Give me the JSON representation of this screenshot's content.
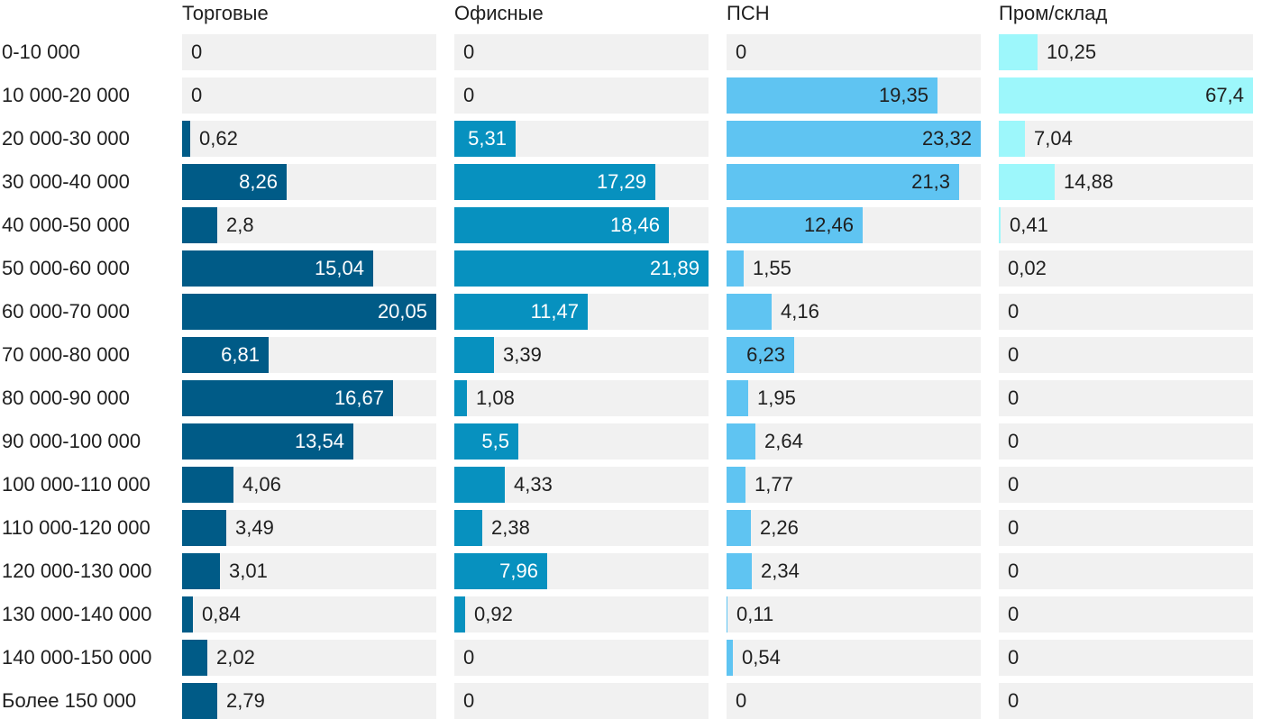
{
  "chart_data": {
    "type": "bar",
    "orientation": "horizontal",
    "layout": "small-multiples",
    "categories": [
      "0-10 000",
      "10 000-20 000",
      "20 000-30 000",
      "30 000-40 000",
      "40 000-50 000",
      "50 000-60 000",
      "60 000-70 000",
      "70 000-80 000",
      "80 000-90 000",
      "90 000-100 000",
      "100 000-110 000",
      "110 000-120 000",
      "120 000-130 000",
      "130 000-140 000",
      "140 000-150 000",
      "Более 150 000"
    ],
    "series": [
      {
        "name": "Торговые",
        "color": "#005b87",
        "labels": [
          "0",
          "0",
          "0,62",
          "8,26",
          "2,8",
          "15,04",
          "20,05",
          "6,81",
          "16,67",
          "13,54",
          "4,06",
          "3,49",
          "3,01",
          "0,84",
          "2,02",
          "2,79"
        ],
        "values": [
          0,
          0,
          0.62,
          8.26,
          2.8,
          15.04,
          20.05,
          6.81,
          16.67,
          13.54,
          4.06,
          3.49,
          3.01,
          0.84,
          2.02,
          2.79
        ]
      },
      {
        "name": "Офисные",
        "color": "#0791bf",
        "labels": [
          "0",
          "0",
          "5,31",
          "17,29",
          "18,46",
          "21,89",
          "11,47",
          "3,39",
          "1,08",
          "5,5",
          "4,33",
          "2,38",
          "7,96",
          "0,92",
          "0",
          "0"
        ],
        "values": [
          0,
          0,
          5.31,
          17.29,
          18.46,
          21.89,
          11.47,
          3.39,
          1.08,
          5.5,
          4.33,
          2.38,
          7.96,
          0.92,
          0,
          0
        ]
      },
      {
        "name": "ПСН",
        "color": "#5fc4f2",
        "labels": [
          "0",
          "19,35",
          "23,32",
          "21,3",
          "12,46",
          "1,55",
          "4,16",
          "6,23",
          "1,95",
          "2,64",
          "1,77",
          "2,26",
          "2,34",
          "0,11",
          "0,54",
          "0"
        ],
        "values": [
          0,
          19.35,
          23.32,
          21.3,
          12.46,
          1.55,
          4.16,
          6.23,
          1.95,
          2.64,
          1.77,
          2.26,
          2.34,
          0.11,
          0.54,
          0
        ]
      },
      {
        "name": "Пром/склад",
        "color": "#9df7fb",
        "labels": [
          "10,25",
          "67,4",
          "7,04",
          "14,88",
          "0,41",
          "0,02",
          "0",
          "0",
          "0",
          "0",
          "0",
          "0",
          "0",
          "0",
          "0",
          "0"
        ],
        "values": [
          10.25,
          67.4,
          7.04,
          14.88,
          0.41,
          0.02,
          0,
          0,
          0,
          0,
          0,
          0,
          0,
          0,
          0,
          0
        ]
      }
    ],
    "inside_label_colors": [
      "#ffffff",
      "#ffffff",
      "#1f1f1f",
      "#1f1f1f"
    ],
    "outside_label_color": "#1f1f1f",
    "track_color": "#f1f1f1"
  }
}
